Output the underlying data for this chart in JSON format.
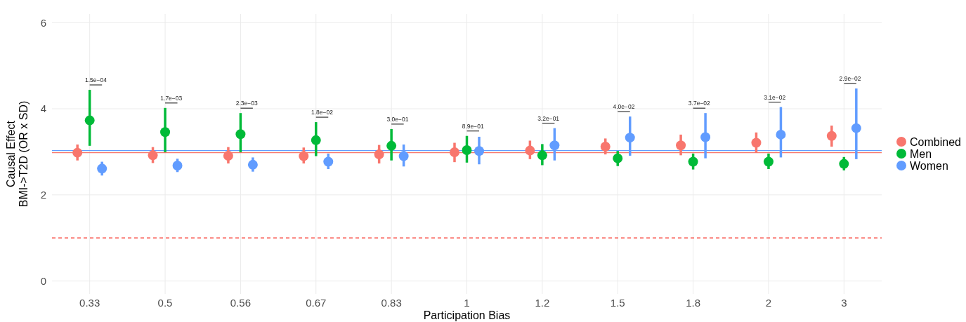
{
  "chart_data": {
    "type": "scatter",
    "xlabel": "Participation Bias",
    "ylabel": "Causal Effect\nBMI->T2D (OR x SD)",
    "categories": [
      "0.33",
      "0.5",
      "0.56",
      "0.67",
      "0.83",
      "1",
      "1.2",
      "1.5",
      "1.8",
      "2",
      "3"
    ],
    "ylim": [
      -0.3,
      6.2
    ],
    "yticks": [
      0,
      2,
      4,
      6
    ],
    "grid": true,
    "legend": "right",
    "marker": "circle",
    "series": [
      {
        "name": "Combined",
        "color": "#f8766d",
        "values": [
          2.98,
          2.92,
          2.91,
          2.9,
          2.94,
          2.99,
          3.03,
          3.12,
          3.15,
          3.21,
          3.37
        ],
        "errors": [
          [
            2.8,
            3.17
          ],
          [
            2.74,
            3.11
          ],
          [
            2.73,
            3.11
          ],
          [
            2.73,
            3.1
          ],
          [
            2.73,
            3.16
          ],
          [
            2.76,
            3.21
          ],
          [
            2.83,
            3.26
          ],
          [
            2.94,
            3.31
          ],
          [
            2.92,
            3.4
          ],
          [
            2.99,
            3.45
          ],
          [
            3.12,
            3.61
          ]
        ]
      },
      {
        "name": "Men",
        "color": "#00ba38",
        "values": [
          3.73,
          3.46,
          3.41,
          3.27,
          3.14,
          3.04,
          2.92,
          2.85,
          2.77,
          2.77,
          2.72
        ],
        "errors": [
          [
            3.14,
            4.44
          ],
          [
            2.99,
            4.02
          ],
          [
            2.99,
            3.9
          ],
          [
            2.9,
            3.69
          ],
          [
            2.8,
            3.53
          ],
          [
            2.75,
            3.37
          ],
          [
            2.69,
            3.18
          ],
          [
            2.67,
            3.02
          ],
          [
            2.59,
            2.96
          ],
          [
            2.6,
            2.96
          ],
          [
            2.57,
            2.88
          ]
        ]
      },
      {
        "name": "Women",
        "color": "#619cff",
        "values": [
          2.61,
          2.68,
          2.7,
          2.77,
          2.9,
          3.02,
          3.15,
          3.33,
          3.34,
          3.4,
          3.55
        ],
        "errors": [
          [
            2.45,
            2.77
          ],
          [
            2.53,
            2.84
          ],
          [
            2.54,
            2.87
          ],
          [
            2.6,
            2.96
          ],
          [
            2.66,
            3.17
          ],
          [
            2.71,
            3.35
          ],
          [
            2.8,
            3.55
          ],
          [
            2.91,
            3.82
          ],
          [
            2.85,
            3.9
          ],
          [
            2.87,
            4.04
          ],
          [
            2.83,
            4.47
          ]
        ]
      }
    ],
    "ref_lines": [
      {
        "axis": "y",
        "value": 3.03,
        "color": "#619cff",
        "line_style": "solid"
      },
      {
        "axis": "y",
        "value": 2.98,
        "color": "#f8766d",
        "line_style": "solid"
      },
      {
        "axis": "y",
        "value": 1,
        "color": "#f8372d",
        "line_style": "dashed"
      }
    ],
    "annotations": [
      "1.5e−04",
      "1.7e−03",
      "2.3e−03",
      "1.8e−02",
      "3.0e−01",
      "8.9e−01",
      "3.2e−01",
      "4.0e−02",
      "3.7e−02",
      "3.1e−02",
      "2.9e−02"
    ]
  }
}
